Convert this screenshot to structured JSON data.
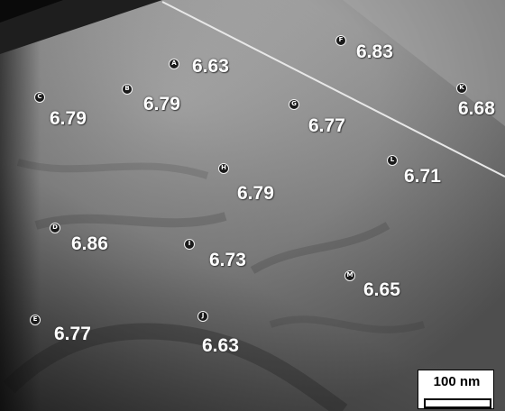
{
  "points": [
    {
      "id": "A",
      "value": "6.63"
    },
    {
      "id": "B",
      "value": "6.79"
    },
    {
      "id": "C",
      "value": "6.79"
    },
    {
      "id": "D",
      "value": "6.86"
    },
    {
      "id": "E",
      "value": "6.77"
    },
    {
      "id": "F",
      "value": "6.83"
    },
    {
      "id": "G",
      "value": "6.77"
    },
    {
      "id": "H",
      "value": "6.79"
    },
    {
      "id": "I",
      "value": "6.73"
    },
    {
      "id": "J",
      "value": "6.63"
    },
    {
      "id": "K",
      "value": "6.68"
    },
    {
      "id": "L",
      "value": "6.71"
    },
    {
      "id": "M",
      "value": "6.65"
    }
  ],
  "scale_bar": {
    "label": "100 nm"
  },
  "colors": {
    "marker_fill": "#1a1a1a",
    "marker_ring": "#f2f2f2",
    "value_text": "#ffffff"
  }
}
